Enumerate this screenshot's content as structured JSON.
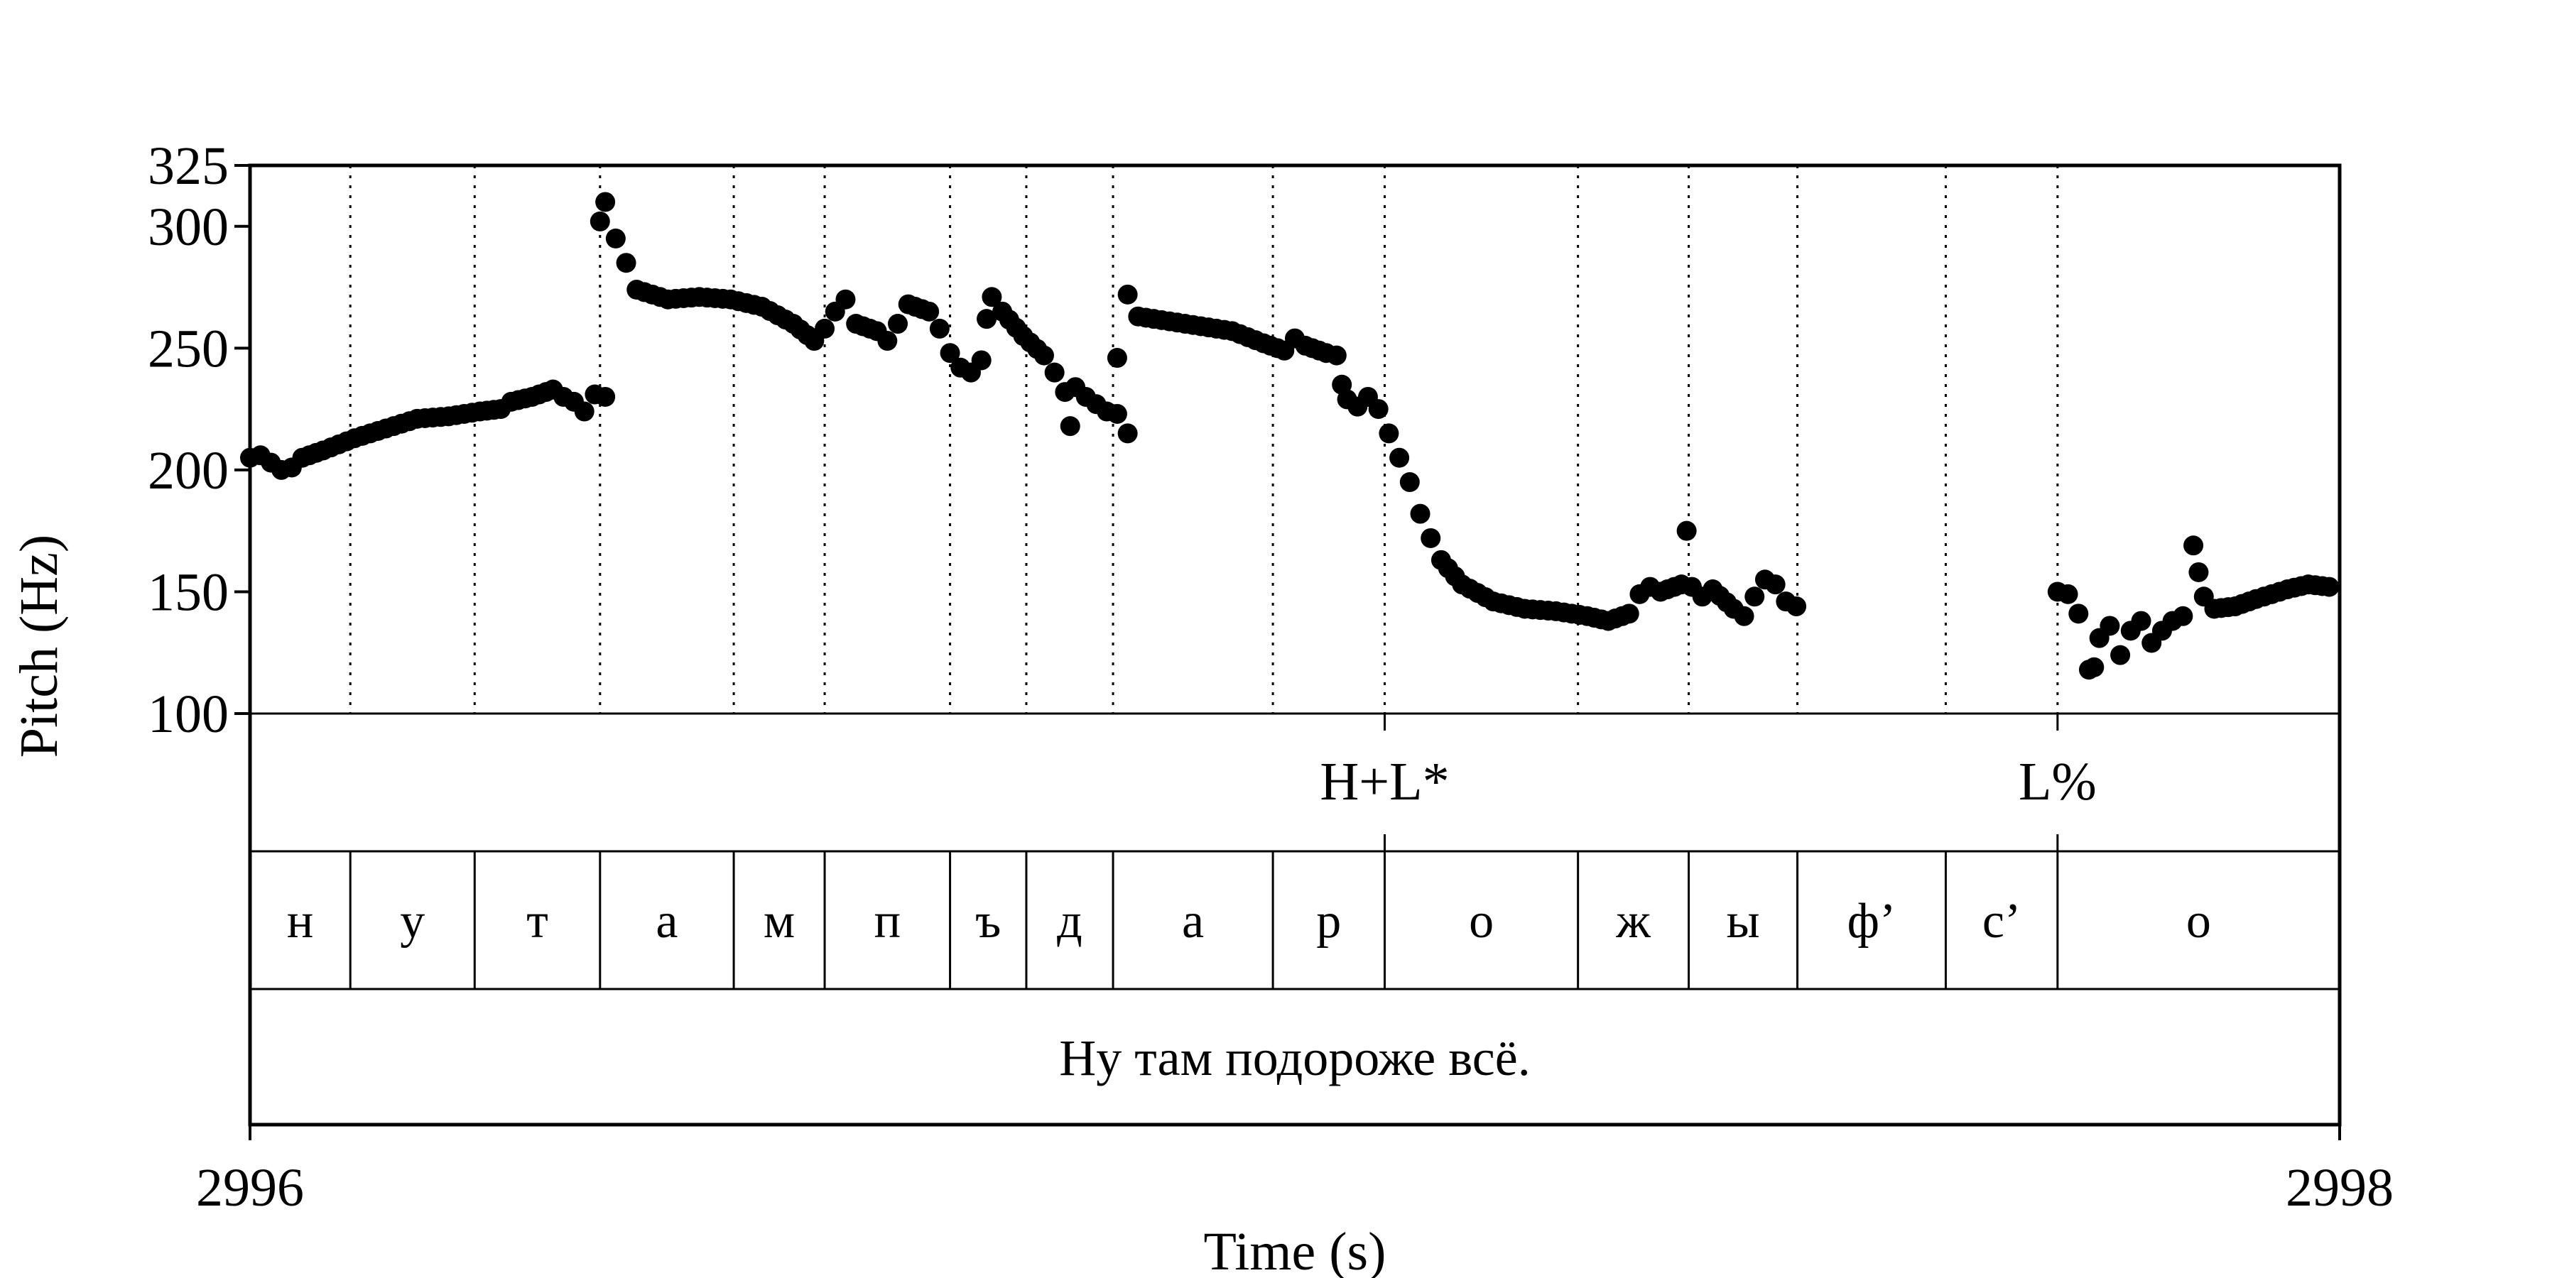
{
  "chart_data": {
    "type": "scatter",
    "title": "",
    "xlabel": "Time (s)",
    "ylabel": "Pitch (Hz)",
    "xlim": [
      2996,
      2998
    ],
    "ylim": [
      100,
      325
    ],
    "x_tick_labels": [
      "2996",
      "2998"
    ],
    "y_tick_labels": [
      "100",
      "150",
      "200",
      "250",
      "300",
      "325"
    ],
    "y_ticks": [
      100,
      150,
      200,
      250,
      300,
      325
    ],
    "grid": false,
    "segments": [
      {
        "label": "н",
        "start": 2996.0,
        "end": 2996.096
      },
      {
        "label": "у",
        "start": 2996.096,
        "end": 2996.215
      },
      {
        "label": "т",
        "start": 2996.215,
        "end": 2996.335
      },
      {
        "label": "а",
        "start": 2996.335,
        "end": 2996.463
      },
      {
        "label": "м",
        "start": 2996.463,
        "end": 2996.55
      },
      {
        "label": "п",
        "start": 2996.55,
        "end": 2996.67
      },
      {
        "label": "ъ",
        "start": 2996.67,
        "end": 2996.743
      },
      {
        "label": "д",
        "start": 2996.743,
        "end": 2996.826
      },
      {
        "label": "а",
        "start": 2996.826,
        "end": 2996.979
      },
      {
        "label": "р",
        "start": 2996.979,
        "end": 2997.086
      },
      {
        "label": "о",
        "start": 2997.086,
        "end": 2997.271
      },
      {
        "label": "ж",
        "start": 2997.271,
        "end": 2997.377
      },
      {
        "label": "ы",
        "start": 2997.377,
        "end": 2997.481
      },
      {
        "label": "ф’",
        "start": 2997.481,
        "end": 2997.623
      },
      {
        "label": "с’",
        "start": 2997.623,
        "end": 2997.73
      },
      {
        "label": "о",
        "start": 2997.73,
        "end": 2998.0
      }
    ],
    "tones": [
      {
        "label": "H+L*",
        "time": 2997.086
      },
      {
        "label": "L%",
        "time": 2997.73
      }
    ],
    "sentence": "Ну там подороже всё.",
    "pitch_track": [
      {
        "from": 2996.0,
        "to": 2996.29,
        "points": [
          [
            2996.0,
            205
          ],
          [
            2996.01,
            206
          ],
          [
            2996.02,
            203
          ],
          [
            2996.03,
            200
          ],
          [
            2996.04,
            201
          ],
          [
            2996.05,
            205
          ],
          [
            2996.07,
            208
          ],
          [
            2996.1,
            213
          ],
          [
            2996.13,
            217
          ],
          [
            2996.16,
            221
          ],
          [
            2996.19,
            222
          ],
          [
            2996.22,
            224
          ],
          [
            2996.24,
            225
          ],
          [
            2996.25,
            228
          ],
          [
            2996.27,
            230
          ],
          [
            2996.29,
            233
          ]
        ]
      },
      {
        "from": 2996.29,
        "to": 2996.29,
        "points": [
          [
            2996.29,
            233
          ],
          [
            2996.3,
            230
          ],
          [
            2996.31,
            228
          ],
          [
            2996.32,
            224
          ],
          [
            2996.33,
            231
          ],
          [
            2996.34,
            230
          ]
        ]
      },
      {
        "from": 2996.335,
        "to": 2996.826,
        "points": [
          [
            2996.335,
            302
          ],
          [
            2996.34,
            310
          ],
          [
            2996.35,
            295
          ],
          [
            2996.36,
            285
          ],
          [
            2996.37,
            274
          ],
          [
            2996.4,
            270
          ],
          [
            2996.43,
            271
          ],
          [
            2996.46,
            270
          ],
          [
            2996.49,
            267
          ],
          [
            2996.52,
            260
          ],
          [
            2996.54,
            253
          ],
          [
            2996.55,
            258
          ],
          [
            2996.56,
            265
          ],
          [
            2996.57,
            270
          ],
          [
            2996.58,
            260
          ],
          [
            2996.6,
            257
          ],
          [
            2996.61,
            253
          ],
          [
            2996.62,
            260
          ],
          [
            2996.63,
            268
          ],
          [
            2996.65,
            265
          ],
          [
            2996.66,
            258
          ],
          [
            2996.67,
            248
          ],
          [
            2996.68,
            242
          ],
          [
            2996.69,
            240
          ],
          [
            2996.7,
            245
          ],
          [
            2996.705,
            262
          ],
          [
            2996.71,
            271
          ],
          [
            2996.72,
            265
          ],
          [
            2996.74,
            255
          ],
          [
            2996.76,
            247
          ],
          [
            2996.77,
            240
          ],
          [
            2996.78,
            232
          ],
          [
            2996.785,
            218
          ],
          [
            2996.79,
            234
          ],
          [
            2996.8,
            230
          ],
          [
            2996.81,
            227
          ],
          [
            2996.82,
            224
          ],
          [
            2996.83,
            223
          ],
          [
            2996.84,
            215
          ]
        ]
      },
      {
        "from": 2996.83,
        "to": 2997.49,
        "points": [
          [
            2996.83,
            246
          ],
          [
            2996.84,
            272
          ],
          [
            2996.85,
            263
          ],
          [
            2996.88,
            261
          ],
          [
            2996.91,
            259
          ],
          [
            2996.94,
            257
          ],
          [
            2996.97,
            252
          ],
          [
            2996.99,
            249
          ],
          [
            2997.0,
            254
          ],
          [
            2997.01,
            251
          ],
          [
            2997.03,
            248
          ],
          [
            2997.04,
            247
          ],
          [
            2997.045,
            235
          ],
          [
            2997.05,
            229
          ],
          [
            2997.06,
            226
          ],
          [
            2997.07,
            230
          ],
          [
            2997.08,
            225
          ],
          [
            2997.09,
            215
          ],
          [
            2997.1,
            205
          ],
          [
            2997.11,
            195
          ],
          [
            2997.12,
            182
          ],
          [
            2997.13,
            172
          ],
          [
            2997.14,
            163
          ],
          [
            2997.16,
            153
          ],
          [
            2997.19,
            146
          ],
          [
            2997.22,
            143
          ],
          [
            2997.25,
            142
          ],
          [
            2997.28,
            140
          ],
          [
            2997.3,
            138
          ],
          [
            2997.32,
            141
          ],
          [
            2997.33,
            149
          ],
          [
            2997.34,
            152
          ],
          [
            2997.35,
            150
          ],
          [
            2997.37,
            153
          ],
          [
            2997.375,
            175
          ],
          [
            2997.38,
            152
          ],
          [
            2997.39,
            148
          ],
          [
            2997.4,
            151
          ],
          [
            2997.42,
            143
          ],
          [
            2997.43,
            140
          ],
          [
            2997.44,
            148
          ],
          [
            2997.45,
            155
          ],
          [
            2997.46,
            153
          ],
          [
            2997.47,
            146
          ],
          [
            2997.48,
            144
          ]
        ]
      },
      {
        "from": 2997.73,
        "to": 2997.99,
        "points": [
          [
            2997.73,
            150
          ],
          [
            2997.74,
            149
          ],
          [
            2997.75,
            141
          ],
          [
            2997.76,
            118
          ],
          [
            2997.765,
            119
          ],
          [
            2997.77,
            131
          ],
          [
            2997.78,
            136
          ],
          [
            2997.79,
            124
          ],
          [
            2997.8,
            134
          ],
          [
            2997.81,
            138
          ],
          [
            2997.82,
            129
          ],
          [
            2997.83,
            134
          ],
          [
            2997.84,
            138
          ],
          [
            2997.85,
            140
          ],
          [
            2997.86,
            169
          ],
          [
            2997.865,
            158
          ],
          [
            2997.87,
            148
          ],
          [
            2997.88,
            143
          ],
          [
            2997.9,
            144
          ],
          [
            2997.92,
            147
          ],
          [
            2997.95,
            151
          ],
          [
            2997.97,
            153
          ],
          [
            2997.99,
            152
          ]
        ]
      }
    ]
  }
}
